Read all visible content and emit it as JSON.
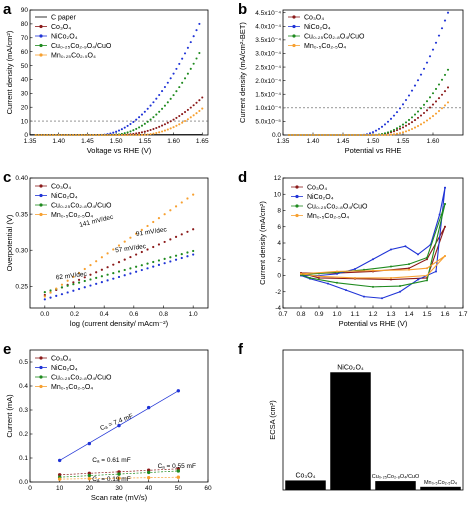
{
  "colors": {
    "C paper": "#000000",
    "Co3O4": "#8b1a1a",
    "NiCo2O4": "#1f33d6",
    "CuCo": "#1e8a1e",
    "MnCo": "#f7a030"
  },
  "chart_data": [
    {
      "id": "a",
      "panel_label": "a",
      "type": "scatter",
      "xlabel": "Voltage vs RHE (V)",
      "ylabel": "Current density (mA/cm²)",
      "xlim": [
        1.35,
        1.66
      ],
      "ylim": [
        0,
        90
      ],
      "xticks": [
        "1.35",
        "1.40",
        "1.45",
        "1.50",
        "1.55",
        "1.60",
        "1.65"
      ],
      "yticks": [
        "0",
        "10",
        "20",
        "30",
        "40",
        "50",
        "60",
        "70",
        "80",
        "90"
      ],
      "reference_line": 10,
      "legend": [
        "C paper",
        "Co₃O₄",
        "NiCo₂O₄",
        "Cu₀.₂₅Co₂.₉O₄/CuO",
        "Mn₀.₂₅Co₂.₅O₄"
      ],
      "series": [
        {
          "name": "C paper",
          "x": [
            1.35,
            1.65
          ],
          "y": [
            0.2,
            0.3
          ]
        },
        {
          "name": "Co₃O₄",
          "onset": 1.5,
          "end": 1.65,
          "y_end": 27,
          "power": 2.2
        },
        {
          "name": "NiCo₂O₄",
          "onset": 1.47,
          "end": 1.645,
          "y_end": 80,
          "power": 2.0
        },
        {
          "name": "Cu₀.₂₅Co₂.₉O₄/CuO",
          "onset": 1.49,
          "end": 1.645,
          "y_end": 59,
          "power": 2.1
        },
        {
          "name": "Mn₀.₂₅Co₂.₅O₄",
          "onset": 1.54,
          "end": 1.65,
          "y_end": 19,
          "power": 2.0
        }
      ]
    },
    {
      "id": "b",
      "panel_label": "b",
      "type": "scatter",
      "xlabel": "Potential vs RHE",
      "ylabel": "Current density (mA/cm²-BET)",
      "xlim": [
        1.35,
        1.65
      ],
      "ylim": [
        0,
        0.00046
      ],
      "xticks": [
        "1.35",
        "1.40",
        "1.45",
        "1.50",
        "1.55",
        "1.60"
      ],
      "yticks": [
        "0.0",
        "5.0x10⁻⁵",
        "1.0x10⁻⁴",
        "1.5x10⁻⁴",
        "2.0x10⁻⁴",
        "2.5x10⁻⁴",
        "3.0x10⁻⁴",
        "3.5x10⁻⁴",
        "4.0x10⁻⁴",
        "4.5x10⁻⁴"
      ],
      "reference_line": 0.0001,
      "legend": [
        "Co₃O₄",
        "NiCo₂O₄",
        "Cu₀.₂₅Co₂.₈O₄/CuO",
        "Mn₀.₅Co₂.₅O₄"
      ],
      "series": [
        {
          "name": "Co₃O₄",
          "onset": 1.5,
          "end": 1.625,
          "y_end": 0.000175,
          "power": 2.0
        },
        {
          "name": "NiCo₂O₄",
          "onset": 1.48,
          "end": 1.625,
          "y_end": 0.00045,
          "power": 1.9
        },
        {
          "name": "Cu₀.₂₅Co₂.₈O₄/CuO",
          "onset": 1.5,
          "end": 1.625,
          "y_end": 0.00024,
          "power": 2.0
        },
        {
          "name": "Mn₀.₅Co₂.₅O₄",
          "onset": 1.52,
          "end": 1.625,
          "y_end": 0.00012,
          "power": 2.0
        }
      ]
    },
    {
      "id": "c",
      "panel_label": "c",
      "type": "scatter",
      "xlabel": "log (current density/ mAcm⁻²)",
      "ylabel": "Overpotential (V)",
      "xlim": [
        -0.1,
        1.1
      ],
      "ylim": [
        0.22,
        0.4
      ],
      "xticks": [
        "0.0",
        "0.2",
        "0.4",
        "0.6",
        "0.8",
        "1.0"
      ],
      "yticks": [
        "0.25",
        "0.30",
        "0.35",
        "0.40"
      ],
      "legend": [
        "Co₃O₄",
        "NiCo₂O₄",
        "Cu₀.₂₅Co₂.₈O₄/CuO",
        "Mn₀.₅Co₂.₅O₄"
      ],
      "series": [
        {
          "name": "Co₃O₄",
          "x": [
            0,
            1
          ],
          "y": [
            0.238,
            0.329
          ]
        },
        {
          "name": "NiCo₂O₄",
          "x": [
            0,
            1
          ],
          "y": [
            0.232,
            0.294
          ]
        },
        {
          "name": "Cu₀.₂₅Co₂.₈O₄/CuO",
          "x": [
            0,
            1
          ],
          "y": [
            0.242,
            0.299
          ]
        },
        {
          "name": "Mn₀.₅Co₂.₅O₄",
          "x": [
            0,
            1
          ],
          "y": [
            0.236,
            0.377
          ]
        }
      ],
      "annotations": [
        "141 mV/dec",
        "91 mV/dec",
        "57 mV/dec",
        "62 mV/dec"
      ]
    },
    {
      "id": "d",
      "panel_label": "d",
      "type": "line",
      "xlabel": "Potential vs RHE (V)",
      "ylabel": "Current density (mA/cm²)",
      "xlim": [
        0.7,
        1.7
      ],
      "ylim": [
        -4,
        12
      ],
      "xticks": [
        "0.7",
        "0.8",
        "0.9",
        "1.0",
        "1.1",
        "1.2",
        "1.3",
        "1.4",
        "1.5",
        "1.6",
        "1.7"
      ],
      "yticks": [
        "-4",
        "-2",
        "0",
        "2",
        "4",
        "6",
        "8",
        "10",
        "12"
      ],
      "legend": [
        "Co₃O₄",
        "NiCo₂O₄",
        "Cu₀.₂₅Co₂.₈O₄/CuO",
        "Mn₀.₅Co₂.₅O₄"
      ],
      "series": [
        {
          "name": "Co₃O₄",
          "forward": [
            [
              0.8,
              0.3
            ],
            [
              1.0,
              0.3
            ],
            [
              1.2,
              0.5
            ],
            [
              1.4,
              0.9
            ],
            [
              1.5,
              2.0
            ],
            [
              1.6,
              6.0
            ]
          ],
          "reverse": [
            [
              1.6,
              6.0
            ],
            [
              1.5,
              -0.3
            ],
            [
              1.3,
              -0.5
            ],
            [
              1.1,
              -0.4
            ],
            [
              0.9,
              -0.3
            ],
            [
              0.8,
              0.3
            ]
          ]
        },
        {
          "name": "NiCo₂O₄",
          "forward": [
            [
              0.8,
              0.0
            ],
            [
              0.9,
              0.0
            ],
            [
              1.0,
              0.2
            ],
            [
              1.1,
              0.8
            ],
            [
              1.2,
              2.0
            ],
            [
              1.3,
              3.2
            ],
            [
              1.38,
              3.6
            ],
            [
              1.45,
              2.6
            ],
            [
              1.52,
              3.8
            ],
            [
              1.57,
              7.5
            ],
            [
              1.6,
              10.8
            ]
          ],
          "reverse": [
            [
              1.6,
              10.8
            ],
            [
              1.55,
              0.5
            ],
            [
              1.45,
              -0.5
            ],
            [
              1.35,
              -2.0
            ],
            [
              1.25,
              -2.8
            ],
            [
              1.15,
              -2.6
            ],
            [
              1.05,
              -1.8
            ],
            [
              0.95,
              -1.0
            ],
            [
              0.85,
              -0.4
            ],
            [
              0.8,
              0.0
            ]
          ]
        },
        {
          "name": "Cu₀.₂₅Co₂.₈O₄/CuO",
          "forward": [
            [
              0.8,
              0.1
            ],
            [
              1.0,
              0.4
            ],
            [
              1.15,
              0.7
            ],
            [
              1.3,
              1.1
            ],
            [
              1.4,
              1.4
            ],
            [
              1.5,
              2.2
            ],
            [
              1.6,
              8.8
            ]
          ],
          "reverse": [
            [
              1.6,
              8.8
            ],
            [
              1.5,
              -0.6
            ],
            [
              1.35,
              -1.3
            ],
            [
              1.2,
              -1.4
            ],
            [
              1.0,
              -0.9
            ],
            [
              0.85,
              -0.3
            ],
            [
              0.8,
              0.1
            ]
          ]
        },
        {
          "name": "Mn₀.₅Co₂.₅O₄",
          "forward": [
            [
              0.8,
              0.2
            ],
            [
              1.0,
              0.5
            ],
            [
              1.2,
              0.6
            ],
            [
              1.4,
              0.7
            ],
            [
              1.5,
              0.9
            ],
            [
              1.6,
              2.4
            ]
          ],
          "reverse": [
            [
              1.6,
              2.4
            ],
            [
              1.5,
              0.0
            ],
            [
              1.3,
              -0.3
            ],
            [
              1.1,
              -0.3
            ],
            [
              0.9,
              -0.1
            ],
            [
              0.8,
              0.2
            ]
          ]
        }
      ]
    },
    {
      "id": "e",
      "panel_label": "e",
      "type": "scatter",
      "xlabel": "Scan rate (mV/s)",
      "ylabel": "Current (mA)",
      "xlim": [
        0,
        60
      ],
      "ylim": [
        0,
        0.55
      ],
      "xticks": [
        "0",
        "10",
        "20",
        "30",
        "40",
        "50",
        "60"
      ],
      "yticks": [
        "0.0",
        "0.1",
        "0.2",
        "0.3",
        "0.4",
        "0.5"
      ],
      "legend": [
        "Co₃O₄",
        "NiCo₂O₄",
        "Cu₀.₂₅Co₂.₈O₄/CuO",
        "Mn₀.₅Co₂.₅O₄"
      ],
      "series": [
        {
          "name": "Co₃O₄",
          "x": [
            10,
            20,
            30,
            40,
            50
          ],
          "y": [
            0.03,
            0.036,
            0.042,
            0.049,
            0.055
          ]
        },
        {
          "name": "NiCo₂O₄",
          "x": [
            10,
            20,
            30,
            40,
            50
          ],
          "y": [
            0.09,
            0.16,
            0.235,
            0.31,
            0.38
          ]
        },
        {
          "name": "Cu₀.₂₅Co₂.₈O₄/CuO",
          "x": [
            10,
            20,
            30,
            40,
            50
          ],
          "y": [
            0.02,
            0.027,
            0.033,
            0.04,
            0.046
          ]
        },
        {
          "name": "Mn₀.₅Co₂.₅O₄",
          "x": [
            10,
            20,
            30,
            40,
            50
          ],
          "y": [
            0.012,
            0.014,
            0.016,
            0.018,
            0.02
          ]
        }
      ],
      "annotations": [
        "Cₐ = 7.4 mF",
        "Cₐ = 0.61 mF",
        "Cₐ = 0.55 mF",
        "Cₐ = 0.19 mF"
      ]
    },
    {
      "id": "f",
      "panel_label": "f",
      "type": "bar",
      "ylabel": "ECSA (cm²)",
      "ylim": [
        0,
        220
      ],
      "categories": [
        "Co₃O₄",
        "NiCo₂O₄",
        "Cu₀.₂₅Co₂.₈O₄/CuO",
        "Mn₀.₅Co₂.₅O₄"
      ],
      "values": [
        15,
        185,
        14,
        5
      ]
    }
  ]
}
